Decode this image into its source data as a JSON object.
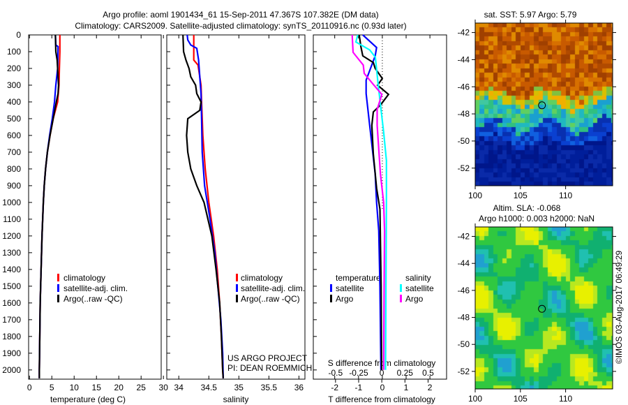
{
  "title_line1": "Argo profile: aoml 1901434_61 15-Sep-2011 47.367S 107.382E (DM data)",
  "title_line2": "Climatology: CARS2009. Satellite-adjusted climatology: synTS_20110916.nc (0.93d later)",
  "credit_line1": "US ARGO PROJECT",
  "credit_line2": "PI: DEAN ROEMMICH",
  "timestamp": "©IMOS 03-Aug-2017 06:49:29",
  "colors": {
    "climatology": "#ff0000",
    "satellite": "#0000ff",
    "argo": "#000000",
    "s_satellite": "#00ffff",
    "s_argo": "#ff00ff"
  },
  "chart_data": [
    {
      "type": "line",
      "name": "temperature-profile",
      "xlabel": "temperature (deg C)",
      "ylabel": "",
      "xlim": [
        -0.2,
        29.5
      ],
      "ylim": [
        2055,
        0
      ],
      "xticks": [
        "0",
        "5",
        "10",
        "15",
        "20",
        "25",
        "30"
      ],
      "yticks": [
        "0",
        "100",
        "200",
        "300",
        "400",
        "500",
        "600",
        "700",
        "800",
        "900",
        "1000",
        "1100",
        "1200",
        "1300",
        "1400",
        "1500",
        "1600",
        "1700",
        "1800",
        "1900",
        "2000"
      ],
      "legend": [
        "climatology",
        "satellite-adj. clim.",
        "Argo(..raw -QC)"
      ],
      "series": [
        {
          "name": "climatology",
          "depth": [
            0,
            100,
            200,
            300,
            400,
            450,
            500,
            600,
            700,
            800,
            900,
            1000,
            1200,
            1400,
            1600,
            1800,
            2000,
            2050
          ],
          "values": [
            6.8,
            6.8,
            6.7,
            6.6,
            6.3,
            5.8,
            5.3,
            4.6,
            4.0,
            3.6,
            3.3,
            3.1,
            2.8,
            2.6,
            2.4,
            2.3,
            2.2,
            2.2
          ]
        },
        {
          "name": "satellite-adj. clim.",
          "depth": [
            0,
            60,
            70,
            200,
            300,
            400,
            500,
            600,
            700,
            800,
            900,
            1000,
            1200,
            1400,
            1600,
            1800,
            2000,
            2050
          ],
          "values": [
            5.8,
            5.9,
            6.4,
            6.3,
            5.9,
            5.6,
            5.1,
            4.5,
            4.0,
            3.6,
            3.3,
            3.1,
            2.8,
            2.6,
            2.4,
            2.3,
            2.2,
            2.2
          ]
        },
        {
          "name": "Argo(..raw -QC)",
          "depth": [
            0,
            100,
            150,
            300,
            350,
            400,
            500,
            600,
            700,
            800,
            900,
            1000,
            1200,
            1400,
            1600,
            1800,
            2000,
            2050
          ],
          "values": [
            5.8,
            5.9,
            6.2,
            6.5,
            6.4,
            6.0,
            5.3,
            4.6,
            4.0,
            3.6,
            3.3,
            3.1,
            2.8,
            2.6,
            2.4,
            2.3,
            2.2,
            2.2
          ]
        }
      ]
    },
    {
      "type": "line",
      "name": "salinity-profile",
      "xlabel": "salinity",
      "xlim": [
        33.8,
        36.1
      ],
      "ylim": [
        2055,
        0
      ],
      "xticks": [
        "34",
        "34.5",
        "35",
        "35.5",
        "36"
      ],
      "legend": [
        "climatology",
        "satellite-adj. clim.",
        "Argo(..raw -QC)"
      ],
      "series": [
        {
          "name": "climatology",
          "depth": [
            0,
            150,
            180,
            300,
            400,
            600,
            800,
            1000,
            1200,
            1400,
            1600,
            1800,
            2000,
            2050
          ],
          "values": [
            34.25,
            34.25,
            34.32,
            34.37,
            34.38,
            34.4,
            34.44,
            34.5,
            34.58,
            34.64,
            34.68,
            34.71,
            34.73,
            34.74
          ]
        },
        {
          "name": "satellite-adj. clim.",
          "depth": [
            0,
            30,
            60,
            80,
            150,
            250,
            350,
            500,
            700,
            900,
            1100,
            1300,
            1500,
            1700,
            1900,
            2050
          ],
          "values": [
            34.14,
            34.15,
            34.2,
            34.3,
            34.33,
            34.35,
            34.37,
            34.38,
            34.39,
            34.43,
            34.52,
            34.6,
            34.65,
            34.7,
            34.73,
            34.74
          ]
        },
        {
          "name": "Argo(..raw -QC)",
          "depth": [
            0,
            100,
            150,
            200,
            250,
            300,
            350,
            400,
            450,
            500,
            600,
            700,
            800,
            900,
            1000,
            1200,
            1400,
            1600,
            1800,
            2000,
            2050
          ],
          "values": [
            34.07,
            34.08,
            34.12,
            34.17,
            34.2,
            34.28,
            34.3,
            34.37,
            34.35,
            34.15,
            34.13,
            34.15,
            34.2,
            34.3,
            34.42,
            34.55,
            34.62,
            34.68,
            34.71,
            34.73,
            34.74
          ]
        }
      ]
    },
    {
      "type": "line",
      "name": "difference-profile",
      "xlabel": "T difference from climatology",
      "xlabel_top": "S difference from climatology",
      "xlim": [
        -2.9,
        2.7
      ],
      "xlim_s": [
        -0.74,
        0.7
      ],
      "ylim": [
        2055,
        0
      ],
      "xticks": [
        "-2",
        "-1",
        "0",
        "1",
        "2"
      ],
      "xticks_s": [
        "-0.5",
        "-0.25",
        "0",
        "0.25",
        "0.5"
      ],
      "legend_temperature": {
        "title": "temperature",
        "items": [
          "satellite",
          "Argo"
        ]
      },
      "legend_salinity": {
        "title": "salinity",
        "items": [
          "satellite",
          "Argo"
        ]
      },
      "series": [
        {
          "name": "temperature satellite",
          "axis": "T",
          "depth": [
            0,
            75,
            125,
            270,
            350,
            540,
            830,
            1000,
            1170,
            1500,
            2000
          ],
          "values": [
            -0.82,
            -0.24,
            -0.3,
            -0.68,
            -0.68,
            -0.53,
            -0.3,
            -0.24,
            -0.15,
            -0.1,
            -0.06
          ]
        },
        {
          "name": "temperature Argo",
          "axis": "T",
          "depth": [
            0,
            70,
            125,
            165,
            200,
            260,
            300,
            355,
            415,
            460,
            540,
            710,
            915,
            1040,
            1500,
            2000
          ],
          "values": [
            -0.97,
            -0.9,
            -0.82,
            -0.38,
            -0.3,
            0.0,
            -0.2,
            0.26,
            -0.06,
            -0.38,
            -0.44,
            -0.38,
            -0.24,
            -0.1,
            -0.05,
            -0.03
          ]
        },
        {
          "name": "salinity satellite",
          "axis": "S",
          "depth": [
            0,
            42,
            90,
            133,
            290,
            415,
            580,
            750,
            1000,
            1500,
            2000
          ],
          "values": [
            -0.26,
            -0.28,
            -0.13,
            -0.07,
            -0.04,
            -0.015,
            0.02,
            0.05,
            0.05,
            0.045,
            0.04
          ]
        },
        {
          "name": "salinity Argo",
          "axis": "S",
          "depth": [
            0,
            104,
            125,
            180,
            230,
            290,
            355,
            445,
            540,
            830,
            1000,
            1170,
            1500,
            2000
          ],
          "values": [
            -0.32,
            -0.31,
            -0.28,
            -0.2,
            -0.19,
            -0.1,
            0.0,
            -0.05,
            -0.05,
            -0.015,
            0.02,
            0.03,
            0.025,
            0.02
          ]
        }
      ]
    },
    {
      "type": "heatmap",
      "name": "sst-map",
      "title": "sat. SST: 5.97 Argo: 5.79",
      "xlim": [
        100,
        115.2
      ],
      "ylim": [
        -53.3,
        -41.3
      ],
      "xticks": [
        "100",
        "105",
        "110"
      ],
      "yticks": [
        "-42",
        "-44",
        "-46",
        "-48",
        "-50",
        "-52"
      ],
      "marker": {
        "lon": 107.382,
        "lat": -47.367
      }
    },
    {
      "type": "heatmap",
      "name": "sla-map",
      "title_line1": "Altim. SLA: -0.068",
      "title_line2": "Argo h1000: 0.003 h2000: NaN",
      "xlim": [
        100,
        115.2
      ],
      "ylim": [
        -53.3,
        -41.3
      ],
      "xticks": [
        "100",
        "105",
        "110"
      ],
      "yticks": [
        "-42",
        "-44",
        "-46",
        "-48",
        "-50",
        "-52"
      ],
      "marker": {
        "lon": 107.382,
        "lat": -47.367
      }
    }
  ]
}
